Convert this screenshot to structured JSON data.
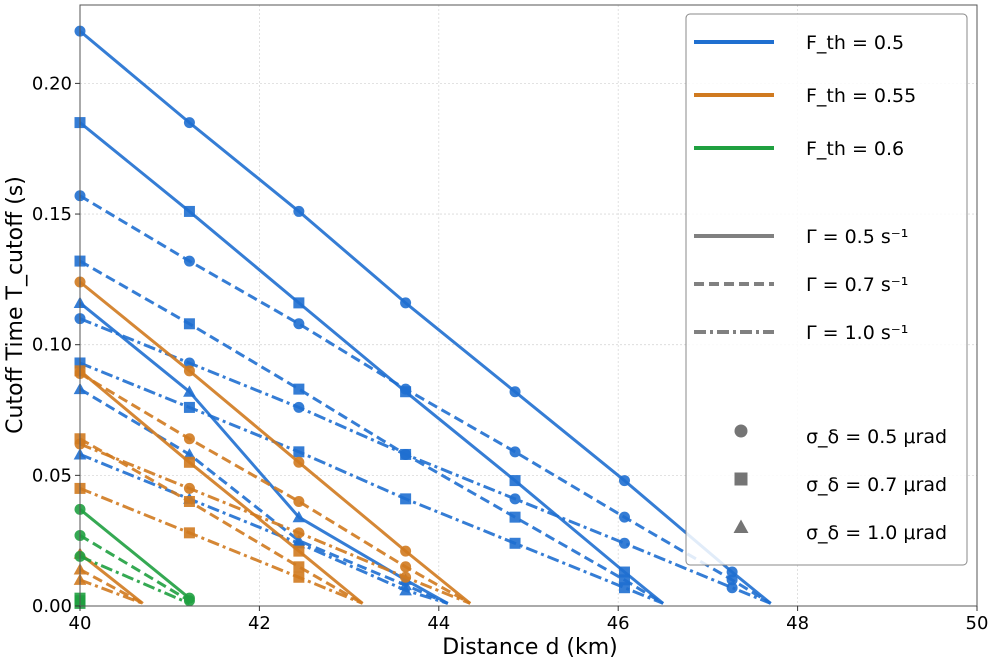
{
  "chart_data": {
    "type": "line",
    "xlabel": "Distance d (km)",
    "ylabel": "Cutoff Time T_cutoff (s)",
    "xlim": [
      40,
      50
    ],
    "ylim": [
      0,
      0.23
    ],
    "xticks": [
      40,
      42,
      44,
      46,
      48,
      50
    ],
    "yticks": [
      0.0,
      0.05,
      0.1,
      0.15,
      0.2
    ],
    "xtick_labels": [
      "40",
      "42",
      "44",
      "46",
      "48",
      "50"
    ],
    "ytick_labels": [
      "0.00",
      "0.05",
      "0.10",
      "0.15",
      "0.20"
    ],
    "grid": true,
    "colors": {
      "0.5": "#1f6fd0",
      "0.55": "#d07a1f",
      "0.6": "#1fa040",
      "neutral": "#808080"
    },
    "legend": {
      "placement": "top-right",
      "fth": [
        {
          "key": "0.5",
          "label": "F_th = 0.5"
        },
        {
          "key": "0.55",
          "label": "F_th = 0.55"
        },
        {
          "key": "0.6",
          "label": "F_th = 0.6"
        }
      ],
      "gamma": [
        {
          "style": "solid",
          "label": "Γ = 0.5 s⁻¹"
        },
        {
          "style": "dashed",
          "label": "Γ = 0.7 s⁻¹"
        },
        {
          "style": "dashdot",
          "label": "Γ = 1.0 s⁻¹"
        }
      ],
      "sigma": [
        {
          "marker": "circle",
          "label": "σ_δ = 0.5 μrad"
        },
        {
          "marker": "square",
          "label": "σ_δ = 0.7 μrad"
        },
        {
          "marker": "triangle",
          "label": "σ_δ = 1.0 μrad"
        }
      ]
    },
    "series": [
      {
        "name": "F_th=0.5, Γ=0.5, σ=0.5",
        "fth": "0.5",
        "style": "solid",
        "marker": "circle",
        "x": [
          40,
          41.22,
          42.44,
          43.63,
          44.85,
          46.07,
          47.27,
          47.7
        ],
        "y": [
          0.22,
          0.185,
          0.151,
          0.116,
          0.082,
          0.048,
          0.013,
          0.001
        ]
      },
      {
        "name": "F_th=0.5, Γ=0.5, σ=0.7",
        "fth": "0.5",
        "style": "solid",
        "marker": "square",
        "x": [
          40,
          41.22,
          42.44,
          43.63,
          44.85,
          46.07,
          46.5
        ],
        "y": [
          0.185,
          0.151,
          0.116,
          0.082,
          0.048,
          0.013,
          0.001
        ]
      },
      {
        "name": "F_th=0.5, Γ=0.5, σ=1.0",
        "fth": "0.5",
        "style": "solid",
        "marker": "triangle",
        "x": [
          40,
          41.22,
          42.44,
          43.63,
          44.1
        ],
        "y": [
          0.116,
          0.082,
          0.034,
          0.01,
          0.001
        ]
      },
      {
        "name": "F_th=0.5, Γ=0.7, σ=0.5",
        "fth": "0.5",
        "style": "dashed",
        "marker": "circle",
        "x": [
          40,
          41.22,
          42.44,
          43.63,
          44.85,
          46.07,
          47.27,
          47.7
        ],
        "y": [
          0.157,
          0.132,
          0.108,
          0.083,
          0.059,
          0.034,
          0.01,
          0.001
        ]
      },
      {
        "name": "F_th=0.5, Γ=0.7, σ=0.7",
        "fth": "0.5",
        "style": "dashed",
        "marker": "square",
        "x": [
          40,
          41.22,
          42.44,
          43.63,
          44.85,
          46.07,
          46.5
        ],
        "y": [
          0.132,
          0.108,
          0.083,
          0.058,
          0.034,
          0.01,
          0.001
        ]
      },
      {
        "name": "F_th=0.5, Γ=0.7, σ=1.0",
        "fth": "0.5",
        "style": "dashed",
        "marker": "triangle",
        "x": [
          40,
          41.22,
          42.44,
          43.63,
          44.1
        ],
        "y": [
          0.083,
          0.058,
          0.025,
          0.008,
          0.001
        ]
      },
      {
        "name": "F_th=0.5, Γ=1.0, σ=0.5",
        "fth": "0.5",
        "style": "dashdot",
        "marker": "circle",
        "x": [
          40,
          41.22,
          42.44,
          43.63,
          44.85,
          46.07,
          47.27,
          47.7
        ],
        "y": [
          0.11,
          0.093,
          0.076,
          0.058,
          0.041,
          0.024,
          0.007,
          0.001
        ]
      },
      {
        "name": "F_th=0.5, Γ=1.0, σ=0.7",
        "fth": "0.5",
        "style": "dashdot",
        "marker": "square",
        "x": [
          40,
          41.22,
          42.44,
          43.63,
          44.85,
          46.07,
          46.5
        ],
        "y": [
          0.093,
          0.076,
          0.059,
          0.041,
          0.024,
          0.007,
          0.001
        ]
      },
      {
        "name": "F_th=0.5, Γ=1.0, σ=1.0",
        "fth": "0.5",
        "style": "dashdot",
        "marker": "triangle",
        "x": [
          40,
          41.22,
          42.44,
          43.63,
          44.1
        ],
        "y": [
          0.058,
          0.041,
          0.024,
          0.006,
          0.001
        ]
      },
      {
        "name": "F_th=0.55, Γ=0.5, σ=0.5",
        "fth": "0.55",
        "style": "solid",
        "marker": "circle",
        "x": [
          40,
          41.22,
          42.44,
          43.63,
          44.35
        ],
        "y": [
          0.124,
          0.09,
          0.055,
          0.021,
          0.001
        ]
      },
      {
        "name": "F_th=0.55, Γ=0.5, σ=0.7",
        "fth": "0.55",
        "style": "solid",
        "marker": "square",
        "x": [
          40,
          41.22,
          42.44,
          43.15
        ],
        "y": [
          0.09,
          0.055,
          0.021,
          0.001
        ]
      },
      {
        "name": "F_th=0.55, Γ=0.5, σ=1.0",
        "fth": "0.55",
        "style": "solid",
        "marker": "triangle",
        "x": [
          40,
          40.7
        ],
        "y": [
          0.02,
          0.001
        ]
      },
      {
        "name": "F_th=0.55, Γ=0.7, σ=0.5",
        "fth": "0.55",
        "style": "dashed",
        "marker": "circle",
        "x": [
          40,
          41.22,
          42.44,
          43.63,
          44.35
        ],
        "y": [
          0.089,
          0.064,
          0.04,
          0.015,
          0.001
        ]
      },
      {
        "name": "F_th=0.55, Γ=0.7, σ=0.7",
        "fth": "0.55",
        "style": "dashed",
        "marker": "square",
        "x": [
          40,
          41.22,
          42.44,
          43.15
        ],
        "y": [
          0.064,
          0.04,
          0.015,
          0.001
        ]
      },
      {
        "name": "F_th=0.55, Γ=0.7, σ=1.0",
        "fth": "0.55",
        "style": "dashed",
        "marker": "triangle",
        "x": [
          40,
          40.7
        ],
        "y": [
          0.014,
          0.001
        ]
      },
      {
        "name": "F_th=0.55, Γ=1.0, σ=0.5",
        "fth": "0.55",
        "style": "dashdot",
        "marker": "circle",
        "x": [
          40,
          41.22,
          42.44,
          43.63,
          44.35
        ],
        "y": [
          0.062,
          0.045,
          0.028,
          0.011,
          0.001
        ]
      },
      {
        "name": "F_th=0.55, Γ=1.0, σ=0.7",
        "fth": "0.55",
        "style": "dashdot",
        "marker": "square",
        "x": [
          40,
          41.22,
          42.44,
          43.15
        ],
        "y": [
          0.045,
          0.028,
          0.011,
          0.001
        ]
      },
      {
        "name": "F_th=0.55, Γ=1.0, σ=1.0",
        "fth": "0.55",
        "style": "dashdot",
        "marker": "triangle",
        "x": [
          40,
          40.7
        ],
        "y": [
          0.01,
          0.001
        ]
      },
      {
        "name": "F_th=0.6, Γ=0.5, σ=0.5",
        "fth": "0.6",
        "style": "solid",
        "marker": "circle",
        "x": [
          40,
          41.22
        ],
        "y": [
          0.037,
          0.003
        ]
      },
      {
        "name": "F_th=0.6, Γ=0.5, σ=0.7",
        "fth": "0.6",
        "style": "solid",
        "marker": "square",
        "x": [
          40
        ],
        "y": [
          0.003
        ]
      },
      {
        "name": "F_th=0.6, Γ=0.7, σ=0.5",
        "fth": "0.6",
        "style": "dashed",
        "marker": "circle",
        "x": [
          40,
          41.22
        ],
        "y": [
          0.027,
          0.002
        ]
      },
      {
        "name": "F_th=0.6, Γ=0.7, σ=0.7",
        "fth": "0.6",
        "style": "dashed",
        "marker": "square",
        "x": [
          40
        ],
        "y": [
          0.002
        ]
      },
      {
        "name": "F_th=0.6, Γ=1.0, σ=0.5",
        "fth": "0.6",
        "style": "dashdot",
        "marker": "circle",
        "x": [
          40,
          41.22
        ],
        "y": [
          0.019,
          0.001
        ]
      },
      {
        "name": "F_th=0.6, Γ=1.0, σ=0.7",
        "fth": "0.6",
        "style": "dashdot",
        "marker": "square",
        "x": [
          40
        ],
        "y": [
          0.001
        ]
      }
    ]
  }
}
